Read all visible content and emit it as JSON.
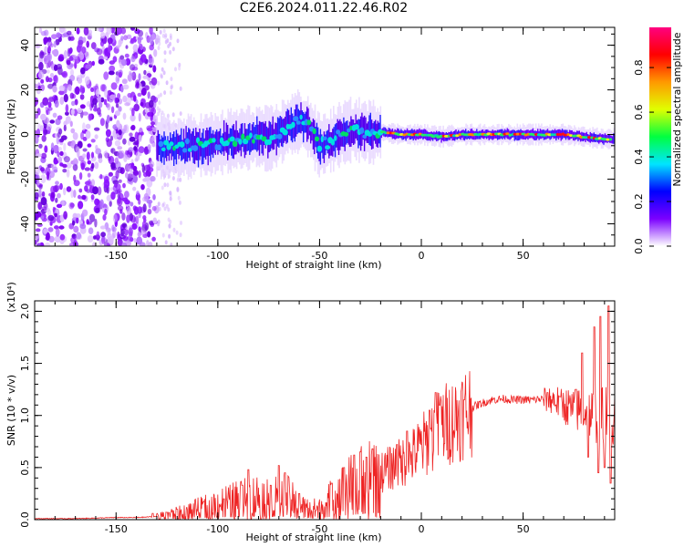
{
  "title": "C2E6.2024.011.22.46.R02",
  "chart_data": [
    {
      "type": "heatmap",
      "xlabel": "Height of straight line (km)",
      "ylabel": "Frequency (Hz)",
      "xlim": [
        -190,
        95
      ],
      "ylim": [
        -50,
        48
      ],
      "xticks": [
        -150,
        -100,
        -50,
        0,
        50
      ],
      "yticks": [
        -40,
        -20,
        0,
        20,
        40
      ],
      "colorbar": {
        "label": "Normalized spectral amplitude",
        "range": [
          0.0,
          0.98
        ],
        "ticks": [
          0.0,
          0.2,
          0.4,
          0.6,
          0.8
        ],
        "colormap": [
          "#ffffff",
          "#7b00ff",
          "#0000ff",
          "#00e5ff",
          "#00ff40",
          "#e0ff00",
          "#ff9900",
          "#ff0000",
          "#ff0080"
        ]
      },
      "ridge": {
        "x": [
          -130,
          -120,
          -110,
          -100,
          -90,
          -80,
          -75,
          -70,
          -65,
          -60,
          -55,
          -52,
          -50,
          -45,
          -40,
          -35,
          -30,
          -25,
          -20,
          -10,
          0,
          10,
          20,
          30,
          40,
          50,
          60,
          70,
          80,
          90,
          95
        ],
        "y": [
          -5,
          -6,
          -5,
          -4,
          -2,
          -1,
          -2,
          0,
          4,
          6,
          3,
          -2,
          -5,
          -3,
          0,
          2,
          2,
          1,
          1,
          0,
          0,
          -1,
          0,
          0,
          0,
          0,
          0,
          0,
          -1,
          -2,
          -2
        ]
      },
      "noise_region_x": [
        -190,
        -130
      ]
    },
    {
      "type": "line",
      "xlabel": "Height of straight line (km)",
      "ylabel": "SNR (10 * v/v)",
      "multiplier": "(x10⁴)",
      "xlim": [
        -190,
        95
      ],
      "ylim": [
        0,
        2.1
      ],
      "xticks": [
        -150,
        -100,
        -50,
        0,
        50
      ],
      "yticks": [
        0.0,
        0.5,
        1.0,
        1.5,
        2.0
      ],
      "ytick_labels": [
        "0.0",
        "0.5",
        "1.0",
        "1.5",
        "2.0"
      ],
      "color": "#ee2222",
      "x": [
        -190,
        -180,
        -170,
        -160,
        -150,
        -140,
        -130,
        -125,
        -120,
        -115,
        -110,
        -105,
        -100,
        -95,
        -90,
        -85,
        -80,
        -75,
        -70,
        -65,
        -60,
        -55,
        -50,
        -45,
        -40,
        -35,
        -30,
        -25,
        -20,
        -15,
        -10,
        -5,
        0,
        5,
        10,
        15,
        20,
        25,
        30,
        35,
        40,
        45,
        50,
        55,
        60,
        65,
        70,
        75,
        80,
        85,
        90,
        93
      ],
      "y": [
        0.01,
        0.01,
        0.01,
        0.015,
        0.02,
        0.02,
        0.03,
        0.05,
        0.06,
        0.08,
        0.1,
        0.12,
        0.15,
        0.17,
        0.18,
        0.2,
        0.22,
        0.18,
        0.22,
        0.2,
        0.12,
        0.1,
        0.1,
        0.18,
        0.25,
        0.3,
        0.35,
        0.42,
        0.45,
        0.5,
        0.55,
        0.6,
        0.7,
        0.8,
        0.9,
        0.95,
        1.02,
        1.08,
        1.12,
        1.15,
        1.16,
        1.15,
        1.15,
        1.15,
        1.16,
        1.15,
        1.1,
        1.05,
        1.05,
        1.0,
        1.02,
        1.0
      ],
      "spikes": [
        {
          "x": -132,
          "y": 0.06
        },
        {
          "x": -125,
          "y": 0.07
        },
        {
          "x": -120,
          "y": 0.1
        },
        {
          "x": -107,
          "y": 0.17
        },
        {
          "x": -97,
          "y": 0.2
        },
        {
          "x": -88,
          "y": 0.33
        },
        {
          "x": -85,
          "y": 0.48
        },
        {
          "x": -74,
          "y": 0.33
        },
        {
          "x": -70,
          "y": 0.52
        },
        {
          "x": -67,
          "y": 0.45
        },
        {
          "x": -60,
          "y": 0.25
        },
        {
          "x": -44,
          "y": 0.35
        },
        {
          "x": -38,
          "y": 0.5
        },
        {
          "x": -33,
          "y": 0.62
        },
        {
          "x": -30,
          "y": 0.65
        },
        {
          "x": -27,
          "y": 0.6
        },
        {
          "x": -24,
          "y": 0.68
        },
        {
          "x": -12,
          "y": 0.72
        },
        {
          "x": -7,
          "y": 0.85
        },
        {
          "x": 4,
          "y": 1.05
        },
        {
          "x": 7,
          "y": 1.22
        },
        {
          "x": 9,
          "y": 1.1
        },
        {
          "x": 21,
          "y": 1.15
        },
        {
          "x": 62,
          "y": 1.22
        },
        {
          "x": 68,
          "y": 1.18
        },
        {
          "x": 76,
          "y": 1.25
        },
        {
          "x": 79,
          "y": 1.6
        },
        {
          "x": 82,
          "y": 0.6
        },
        {
          "x": 85,
          "y": 1.85
        },
        {
          "x": 87,
          "y": 0.45
        },
        {
          "x": 88,
          "y": 1.95
        },
        {
          "x": 90,
          "y": 0.5
        },
        {
          "x": 92,
          "y": 2.05
        },
        {
          "x": 93,
          "y": 0.35
        }
      ]
    }
  ]
}
